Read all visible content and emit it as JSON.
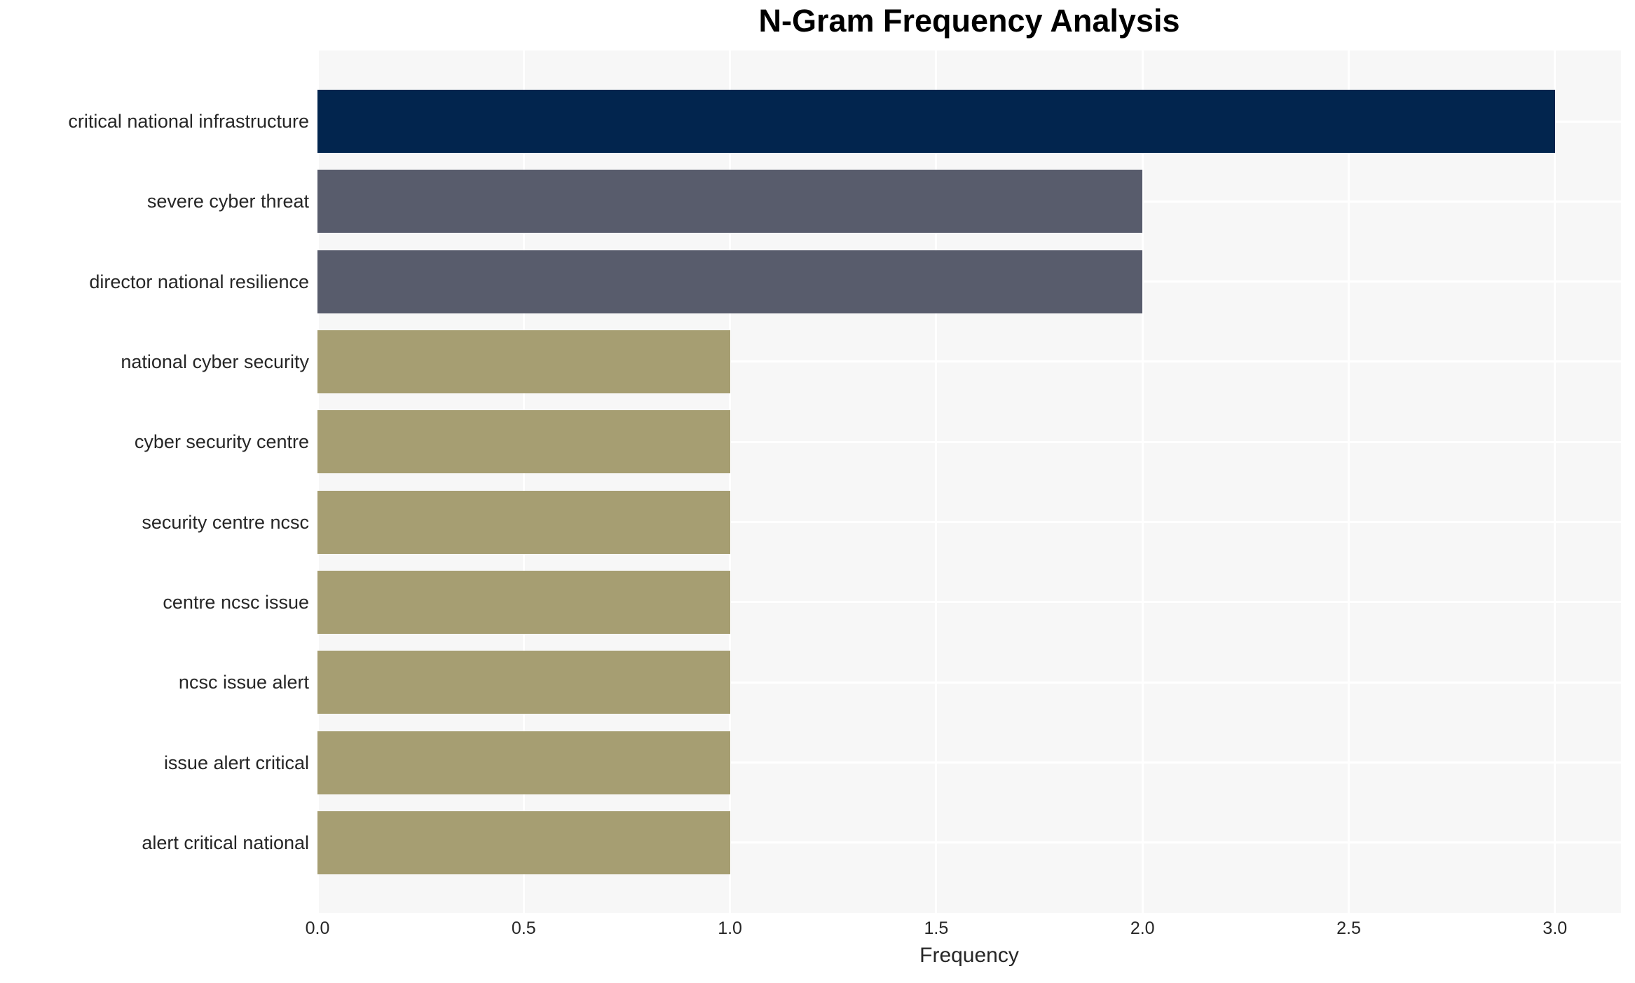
{
  "chart_data": {
    "type": "bar",
    "orientation": "horizontal",
    "title": "N-Gram Frequency Analysis",
    "xlabel": "Frequency",
    "ylabel": "",
    "categories": [
      "critical national infrastructure",
      "severe cyber threat",
      "director national resilience",
      "national cyber security",
      "cyber security centre",
      "security centre ncsc",
      "centre ncsc issue",
      "ncsc issue alert",
      "issue alert critical",
      "alert critical national"
    ],
    "values": [
      3,
      2,
      2,
      1,
      1,
      1,
      1,
      1,
      1,
      1
    ],
    "bar_colors": [
      "#02254e",
      "#585c6c",
      "#585c6c",
      "#a69e72",
      "#a69e72",
      "#a69e72",
      "#a69e72",
      "#a69e72",
      "#a69e72",
      "#a69e72"
    ],
    "xlim": [
      0,
      3.16
    ],
    "xticks": [
      0.0,
      0.5,
      1.0,
      1.5,
      2.0,
      2.5,
      3.0
    ],
    "xtick_labels": [
      "0.0",
      "0.5",
      "1.0",
      "1.5",
      "2.0",
      "2.5",
      "3.0"
    ],
    "grid": true,
    "legend": false,
    "colors": {
      "figure_background": "#ffffff",
      "plot_background": "#f7f7f7",
      "gridline": "#ffffff",
      "title_text": "#000000",
      "label_text": "#262626"
    }
  }
}
